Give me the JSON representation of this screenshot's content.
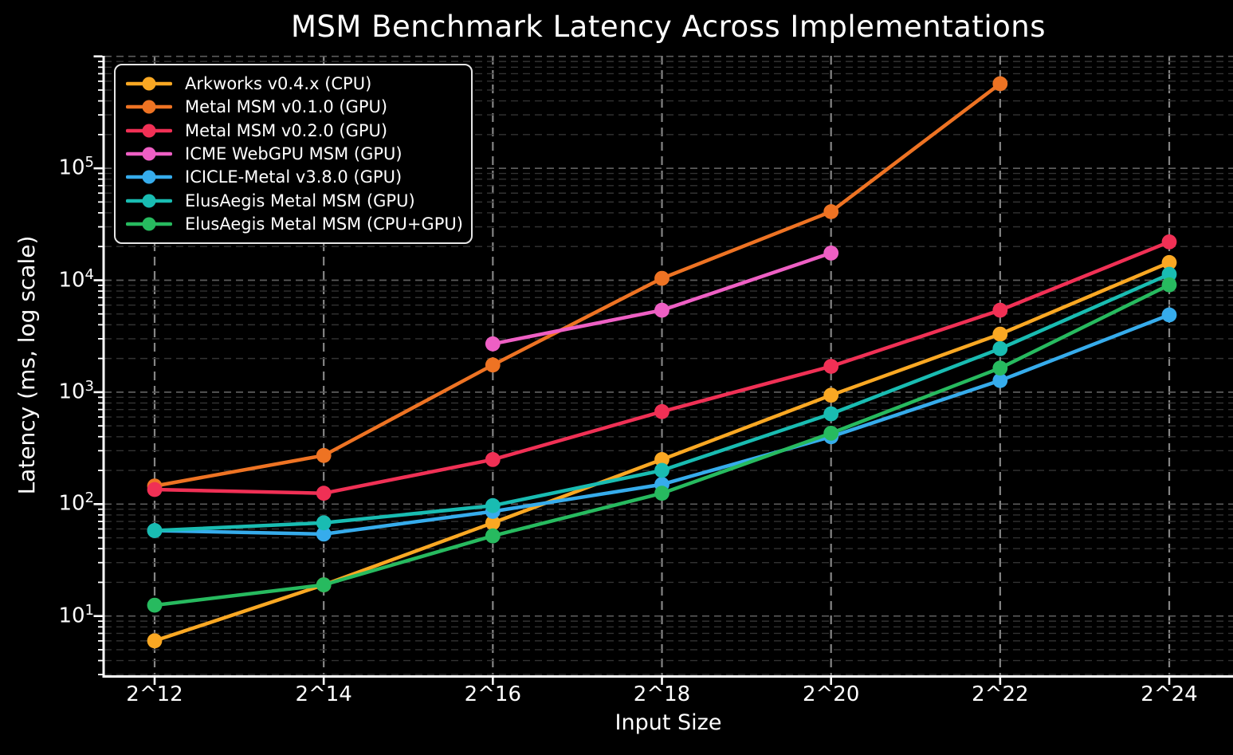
{
  "chart_data": {
    "type": "line",
    "title": "MSM Benchmark Latency Across Implementations",
    "xlabel": "Input Size",
    "ylabel": "Latency (ms, log scale)",
    "categories": [
      "2^12",
      "2^14",
      "2^16",
      "2^18",
      "2^20",
      "2^22",
      "2^24"
    ],
    "y_scale": "log",
    "ylim": [
      3,
      1000000
    ],
    "y_major_tick_exponents": [
      1,
      2,
      3,
      4,
      5
    ],
    "grid": true,
    "legend_position": "upper left",
    "series": [
      {
        "name": "Arkworks v0.4.x (CPU)",
        "color": "#FAA823",
        "values": [
          6,
          19,
          68,
          250,
          940,
          3300,
          14400
        ]
      },
      {
        "name": "Metal MSM v0.1.0 (GPU)",
        "color": "#EE7323",
        "values": [
          145,
          272,
          1750,
          10400,
          41000,
          570000,
          null
        ]
      },
      {
        "name": "Metal MSM v0.2.0 (GPU)",
        "color": "#F03055",
        "values": [
          135,
          125,
          250,
          670,
          1700,
          5400,
          22000
        ]
      },
      {
        "name": "ICME WebGPU MSM (GPU)",
        "color": "#EE5FC4",
        "values": [
          null,
          null,
          2700,
          5400,
          17500,
          null,
          null
        ]
      },
      {
        "name": "ICICLE-Metal v3.8.0 (GPU)",
        "color": "#36ACEC",
        "values": [
          58,
          54,
          86,
          150,
          400,
          1270,
          4900
        ]
      },
      {
        "name": "ElusAegis Metal MSM (GPU)",
        "color": "#19BCB2",
        "values": [
          58,
          68,
          97,
          200,
          640,
          2450,
          11300
        ]
      },
      {
        "name": "ElusAegis Metal MSM (CPU+GPU)",
        "color": "#27BA5F",
        "values": [
          12.5,
          19,
          52,
          125,
          430,
          1640,
          9100
        ]
      }
    ],
    "style": {
      "background": "#000000",
      "text_color": "#FFFFFF",
      "spine_color": "#FFFFFF",
      "grid_vertical_color": "#858585",
      "grid_major_color": "#5C5C5C",
      "grid_minor_color": "#333333"
    }
  }
}
